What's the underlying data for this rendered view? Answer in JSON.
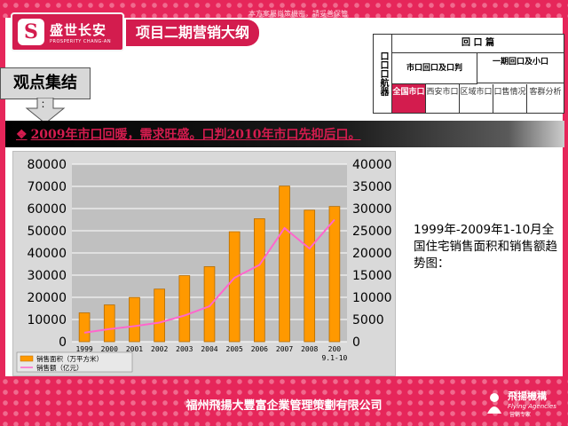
{
  "header": {
    "confidential": "本方案屬尚策機密，請妥善保管",
    "logo_cn": "盛世长安",
    "logo_en": "PROSPERITY CHANG-AN",
    "outline_title": "项目二期营销大纲"
  },
  "nav": {
    "side_label": "口口口航器",
    "section_title": "回 口 篇",
    "sub_a": "市口回口及口判",
    "sub_b": "一期回口及小口",
    "cells": [
      "全国市口",
      "西安市口",
      "区域市口",
      "口售情况",
      "客群分析"
    ]
  },
  "viewpoint": {
    "label": "观点集结",
    "sub": "："
  },
  "headline": "2009年市口回暖，需求旺盛。口判2010年市口先抑后口。",
  "caption": "1999年-2009年1-10月全国住宅销售面积和销售额趋势图：",
  "footer": {
    "company": "福州飛揚大豐富企業管理策劃有限公司",
    "logo_cn": "飛揚機構",
    "logo_en": "Flying Agencies",
    "logo_sub": "营销专家"
  },
  "colors": {
    "accent": "#d31c4e",
    "bar": "#ff9900",
    "line": "#ff66cc"
  },
  "chart_data": {
    "type": "bar",
    "categories": [
      "1999",
      "2000",
      "2001",
      "2002",
      "2003",
      "2004",
      "2005",
      "2006",
      "2007",
      "2008",
      "2009.1-10"
    ],
    "tick_labels": [
      "1999",
      "2000",
      "2001",
      "2002",
      "2003",
      "2004",
      "2005",
      "2006",
      "2007",
      "2008",
      "200\n9.1-10"
    ],
    "series": [
      {
        "name": "销售面积（万平方米）",
        "type": "bar",
        "axis": "left",
        "values": [
          12998,
          16570,
          19939,
          23702,
          29779,
          33820,
          49588,
          55423,
          70136,
          59280,
          60936
        ]
      },
      {
        "name": "销售额（亿元）",
        "type": "line",
        "axis": "right",
        "values": [
          2018,
          2850,
          3500,
          4300,
          5900,
          8000,
          14400,
          17300,
          25600,
          21000,
          27500
        ]
      }
    ],
    "y_left": {
      "min": 0,
      "max": 80000,
      "ticks": [
        0,
        10000,
        20000,
        30000,
        40000,
        50000,
        60000,
        70000,
        80000
      ]
    },
    "y_right": {
      "min": 0,
      "max": 40000,
      "ticks": [
        0,
        5000,
        10000,
        15000,
        20000,
        25000,
        30000,
        35000,
        40000
      ]
    },
    "grid": true,
    "legend": "bottom-left"
  }
}
